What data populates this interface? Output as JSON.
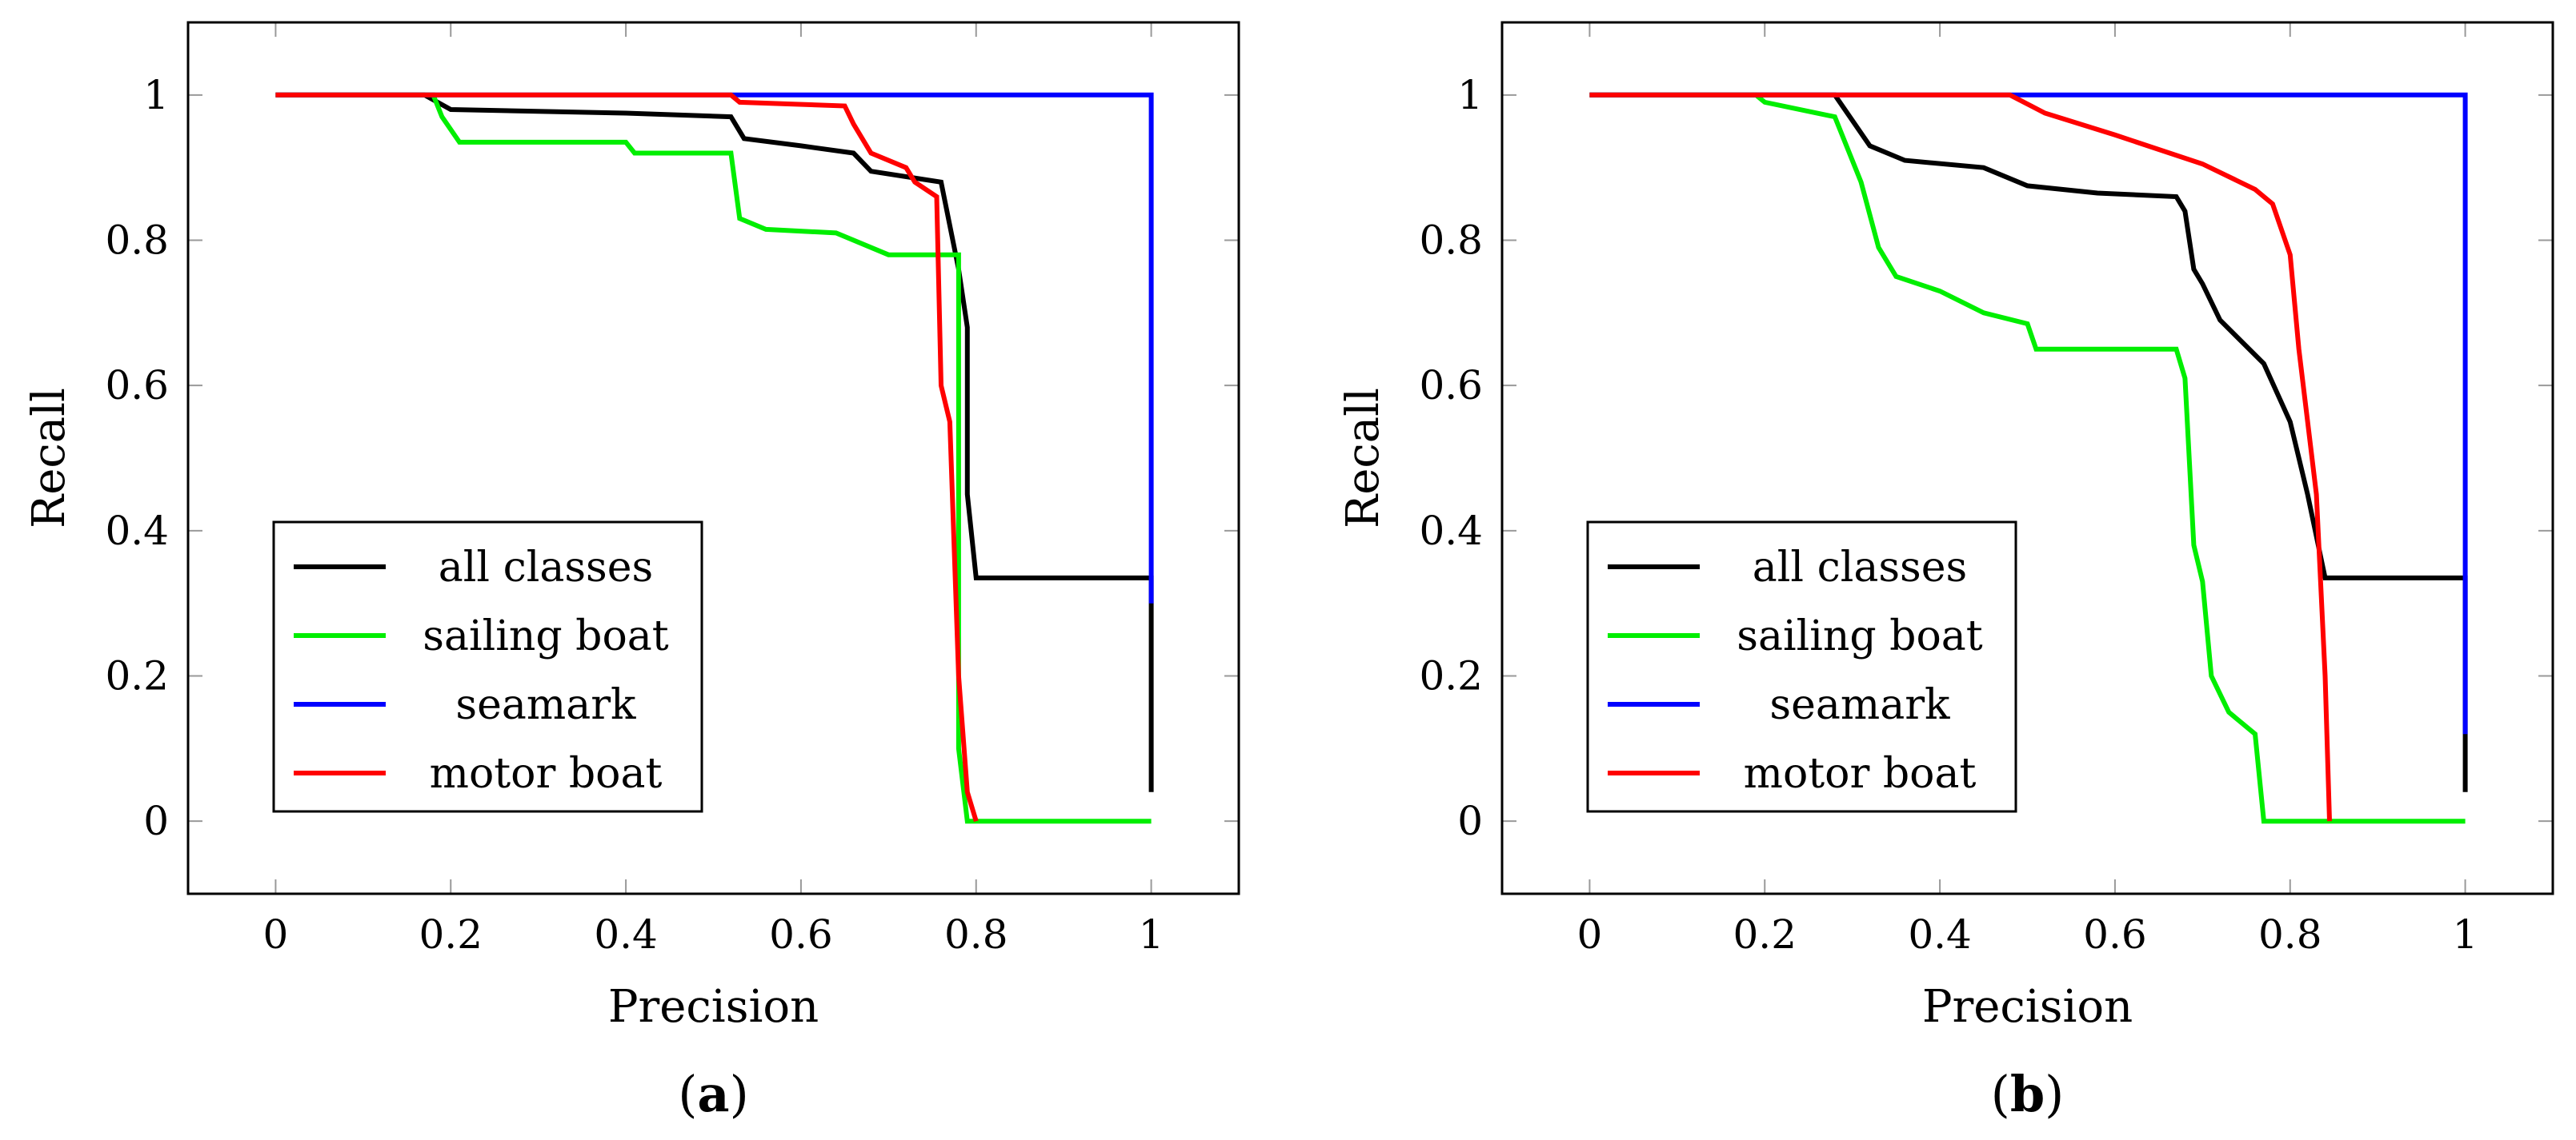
{
  "chart_data": [
    {
      "type": "line",
      "panel_label": "a",
      "xlabel": "Precision",
      "ylabel": "Recall",
      "xlim": [
        -0.1,
        1.1
      ],
      "ylim": [
        -0.1,
        1.1
      ],
      "xticks": [
        0,
        0.2,
        0.4,
        0.6,
        0.8,
        1
      ],
      "yticks": [
        0,
        0.2,
        0.4,
        0.6,
        0.8,
        1
      ],
      "xtick_labels": [
        "0",
        "0.2",
        "0.4",
        "0.6",
        "0.8",
        "1"
      ],
      "ytick_labels": [
        "0",
        "0.2",
        "0.4",
        "0.6",
        "0.8",
        "1"
      ],
      "legend_location": "lower-left",
      "series": [
        {
          "name": "all classes",
          "color": "#000000",
          "points": [
            [
              0,
              1
            ],
            [
              0.17,
              1
            ],
            [
              0.2,
              0.98
            ],
            [
              0.4,
              0.975
            ],
            [
              0.52,
              0.97
            ],
            [
              0.535,
              0.94
            ],
            [
              0.6,
              0.93
            ],
            [
              0.66,
              0.92
            ],
            [
              0.68,
              0.895
            ],
            [
              0.76,
              0.88
            ],
            [
              0.78,
              0.76
            ],
            [
              0.79,
              0.68
            ],
            [
              0.79,
              0.45
            ],
            [
              0.8,
              0.335
            ],
            [
              1,
              0.335
            ],
            [
              1,
              0.04
            ]
          ]
        },
        {
          "name": "sailing boat",
          "color": "#00ee00",
          "points": [
            [
              0,
              1
            ],
            [
              0.18,
              1
            ],
            [
              0.19,
              0.97
            ],
            [
              0.21,
              0.935
            ],
            [
              0.4,
              0.935
            ],
            [
              0.41,
              0.92
            ],
            [
              0.52,
              0.92
            ],
            [
              0.53,
              0.83
            ],
            [
              0.56,
              0.815
            ],
            [
              0.64,
              0.81
            ],
            [
              0.7,
              0.78
            ],
            [
              0.73,
              0.78
            ],
            [
              0.78,
              0.78
            ],
            [
              0.78,
              0.1
            ],
            [
              0.79,
              0
            ],
            [
              1,
              0
            ]
          ]
        },
        {
          "name": "seamark",
          "color": "#0000ff",
          "points": [
            [
              0,
              1
            ],
            [
              1,
              1
            ],
            [
              1,
              0.3
            ]
          ]
        },
        {
          "name": "motor boat",
          "color": "#ff0000",
          "points": [
            [
              0,
              1
            ],
            [
              0.52,
              1
            ],
            [
              0.53,
              0.99
            ],
            [
              0.65,
              0.985
            ],
            [
              0.66,
              0.96
            ],
            [
              0.68,
              0.92
            ],
            [
              0.72,
              0.9
            ],
            [
              0.73,
              0.88
            ],
            [
              0.755,
              0.86
            ],
            [
              0.76,
              0.6
            ],
            [
              0.77,
              0.55
            ],
            [
              0.78,
              0.2
            ],
            [
              0.79,
              0.04
            ],
            [
              0.8,
              0
            ]
          ]
        }
      ]
    },
    {
      "type": "line",
      "panel_label": "b",
      "xlabel": "Precision",
      "ylabel": "Recall",
      "xlim": [
        -0.1,
        1.1
      ],
      "ylim": [
        -0.1,
        1.1
      ],
      "xticks": [
        0,
        0.2,
        0.4,
        0.6,
        0.8,
        1
      ],
      "yticks": [
        0,
        0.2,
        0.4,
        0.6,
        0.8,
        1
      ],
      "xtick_labels": [
        "0",
        "0.2",
        "0.4",
        "0.6",
        "0.8",
        "1"
      ],
      "ytick_labels": [
        "0",
        "0.2",
        "0.4",
        "0.6",
        "0.8",
        "1"
      ],
      "legend_location": "lower-left",
      "series": [
        {
          "name": "all classes",
          "color": "#000000",
          "points": [
            [
              0,
              1
            ],
            [
              0.28,
              1
            ],
            [
              0.32,
              0.93
            ],
            [
              0.36,
              0.91
            ],
            [
              0.45,
              0.9
            ],
            [
              0.5,
              0.875
            ],
            [
              0.58,
              0.865
            ],
            [
              0.67,
              0.86
            ],
            [
              0.68,
              0.84
            ],
            [
              0.69,
              0.76
            ],
            [
              0.7,
              0.74
            ],
            [
              0.72,
              0.69
            ],
            [
              0.77,
              0.63
            ],
            [
              0.8,
              0.55
            ],
            [
              0.82,
              0.45
            ],
            [
              0.84,
              0.335
            ],
            [
              1,
              0.335
            ],
            [
              1,
              0.04
            ]
          ]
        },
        {
          "name": "sailing boat",
          "color": "#00ee00",
          "points": [
            [
              0,
              1
            ],
            [
              0.19,
              1
            ],
            [
              0.2,
              0.99
            ],
            [
              0.28,
              0.97
            ],
            [
              0.31,
              0.88
            ],
            [
              0.33,
              0.79
            ],
            [
              0.35,
              0.75
            ],
            [
              0.4,
              0.73
            ],
            [
              0.45,
              0.7
            ],
            [
              0.5,
              0.685
            ],
            [
              0.51,
              0.65
            ],
            [
              0.67,
              0.65
            ],
            [
              0.68,
              0.61
            ],
            [
              0.69,
              0.38
            ],
            [
              0.7,
              0.33
            ],
            [
              0.71,
              0.2
            ],
            [
              0.73,
              0.15
            ],
            [
              0.76,
              0.12
            ],
            [
              0.77,
              0
            ],
            [
              1,
              0
            ]
          ]
        },
        {
          "name": "seamark",
          "color": "#0000ff",
          "points": [
            [
              0,
              1
            ],
            [
              1,
              1
            ],
            [
              1,
              0.12
            ]
          ]
        },
        {
          "name": "motor boat",
          "color": "#ff0000",
          "points": [
            [
              0,
              1
            ],
            [
              0.48,
              1
            ],
            [
              0.52,
              0.975
            ],
            [
              0.6,
              0.945
            ],
            [
              0.7,
              0.905
            ],
            [
              0.76,
              0.87
            ],
            [
              0.78,
              0.85
            ],
            [
              0.8,
              0.78
            ],
            [
              0.81,
              0.65
            ],
            [
              0.83,
              0.45
            ],
            [
              0.84,
              0.2
            ],
            [
              0.845,
              0
            ]
          ]
        }
      ]
    }
  ]
}
